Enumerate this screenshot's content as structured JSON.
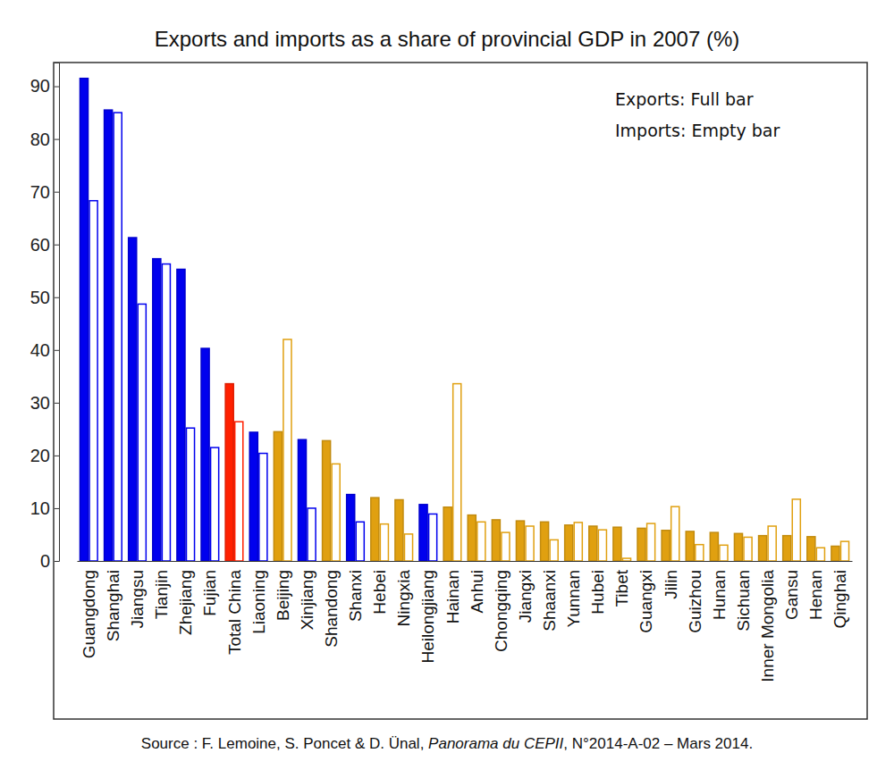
{
  "chart_data": {
    "type": "bar",
    "title": "Exports and imports as a share of provincial GDP in 2007 (%)",
    "categories": [
      "Guangdong",
      "Shanghai",
      "Jiangsu",
      "Tianjin",
      "Zhejiang",
      "Fujian",
      "Total China",
      "Liaoning",
      "Beijing",
      "Xinjiang",
      "Shandong",
      "Shanxi",
      "Hebei",
      "Ningxia",
      "Heilongjiang",
      "Hainan",
      "Anhui",
      "Chongqing",
      "Jiangxi",
      "Shaanxi",
      "Yunnan",
      "Hubei",
      "Tibet",
      "Guangxi",
      "Jilin",
      "Guizhou",
      "Hunan",
      "Sichuan",
      "Inner Mongolia",
      "Gansu",
      "Henan",
      "Qinghai"
    ],
    "series": [
      {
        "name": "Exports: Full bar",
        "values": [
          91.5,
          85.5,
          61.3,
          57.3,
          55.3,
          40.3,
          33.6,
          24.4,
          24.5,
          23.0,
          22.8,
          12.6,
          12.0,
          11.6,
          10.7,
          10.2,
          8.7,
          7.8,
          7.6,
          7.4,
          6.8,
          6.6,
          6.4,
          6.2,
          5.8,
          5.6,
          5.4,
          5.2,
          4.8,
          4.8,
          4.6,
          2.8
        ]
      },
      {
        "name": "Imports: Empty bar",
        "values": [
          68.3,
          85.0,
          48.7,
          56.3,
          25.2,
          21.5,
          26.4,
          20.4,
          42.0,
          10.0,
          18.4,
          7.4,
          7.0,
          5.1,
          8.9,
          33.6,
          7.4,
          5.4,
          6.6,
          4.0,
          7.3,
          5.9,
          0.5,
          7.1,
          10.3,
          3.1,
          3.0,
          4.5,
          6.6,
          11.7,
          2.5,
          3.7
        ]
      }
    ],
    "colors": [
      "#0000ee",
      "#0000ee",
      "#0000ee",
      "#0000ee",
      "#0000ee",
      "#0000ee",
      "#ff2000",
      "#0000ee",
      "#e0a010",
      "#0000ee",
      "#e0a010",
      "#0000ee",
      "#e0a010",
      "#e0a010",
      "#0000ee",
      "#e0a010",
      "#e0a010",
      "#e0a010",
      "#e0a010",
      "#e0a010",
      "#e0a010",
      "#e0a010",
      "#e0a010",
      "#e0a010",
      "#e0a010",
      "#e0a010",
      "#e0a010",
      "#e0a010",
      "#e0a010",
      "#e0a010",
      "#e0a010",
      "#e0a010"
    ],
    "ylim": [
      0,
      94.5
    ],
    "yticks": [
      0,
      10,
      20,
      30,
      40,
      50,
      60,
      70,
      80,
      90
    ],
    "grid": false,
    "legend": "top-right",
    "source": [
      "Source : F. Lemoine, S. Poncet & D. Ünal, ",
      "Panorama du CEPII",
      ", N°2014-A-02 – Mars 2014."
    ]
  }
}
